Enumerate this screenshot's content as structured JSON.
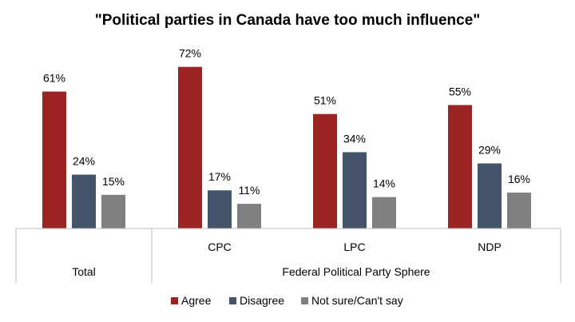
{
  "chart_data": {
    "type": "bar",
    "title": "\"Political parties in Canada have too much influence\"",
    "groups": [
      {
        "label": "Total",
        "categories": [
          "Total"
        ]
      },
      {
        "label": "Federal Political Party Sphere",
        "categories": [
          "CPC",
          "LPC",
          "NDP"
        ]
      }
    ],
    "categories": [
      "Total",
      "CPC",
      "LPC",
      "NDP"
    ],
    "show_category_labels": [
      false,
      true,
      true,
      true
    ],
    "series": [
      {
        "name": "Agree",
        "values": [
          61,
          72,
          51,
          55
        ],
        "color": "#9B2423"
      },
      {
        "name": "Disagree",
        "values": [
          24,
          17,
          34,
          29
        ],
        "color": "#44546A"
      },
      {
        "name": "Not sure/Can't say",
        "values": [
          15,
          11,
          14,
          16
        ],
        "color": "#808080"
      }
    ],
    "value_suffix": "%",
    "ylim": [
      0,
      80
    ],
    "grid": false,
    "legend_position": "bottom"
  }
}
